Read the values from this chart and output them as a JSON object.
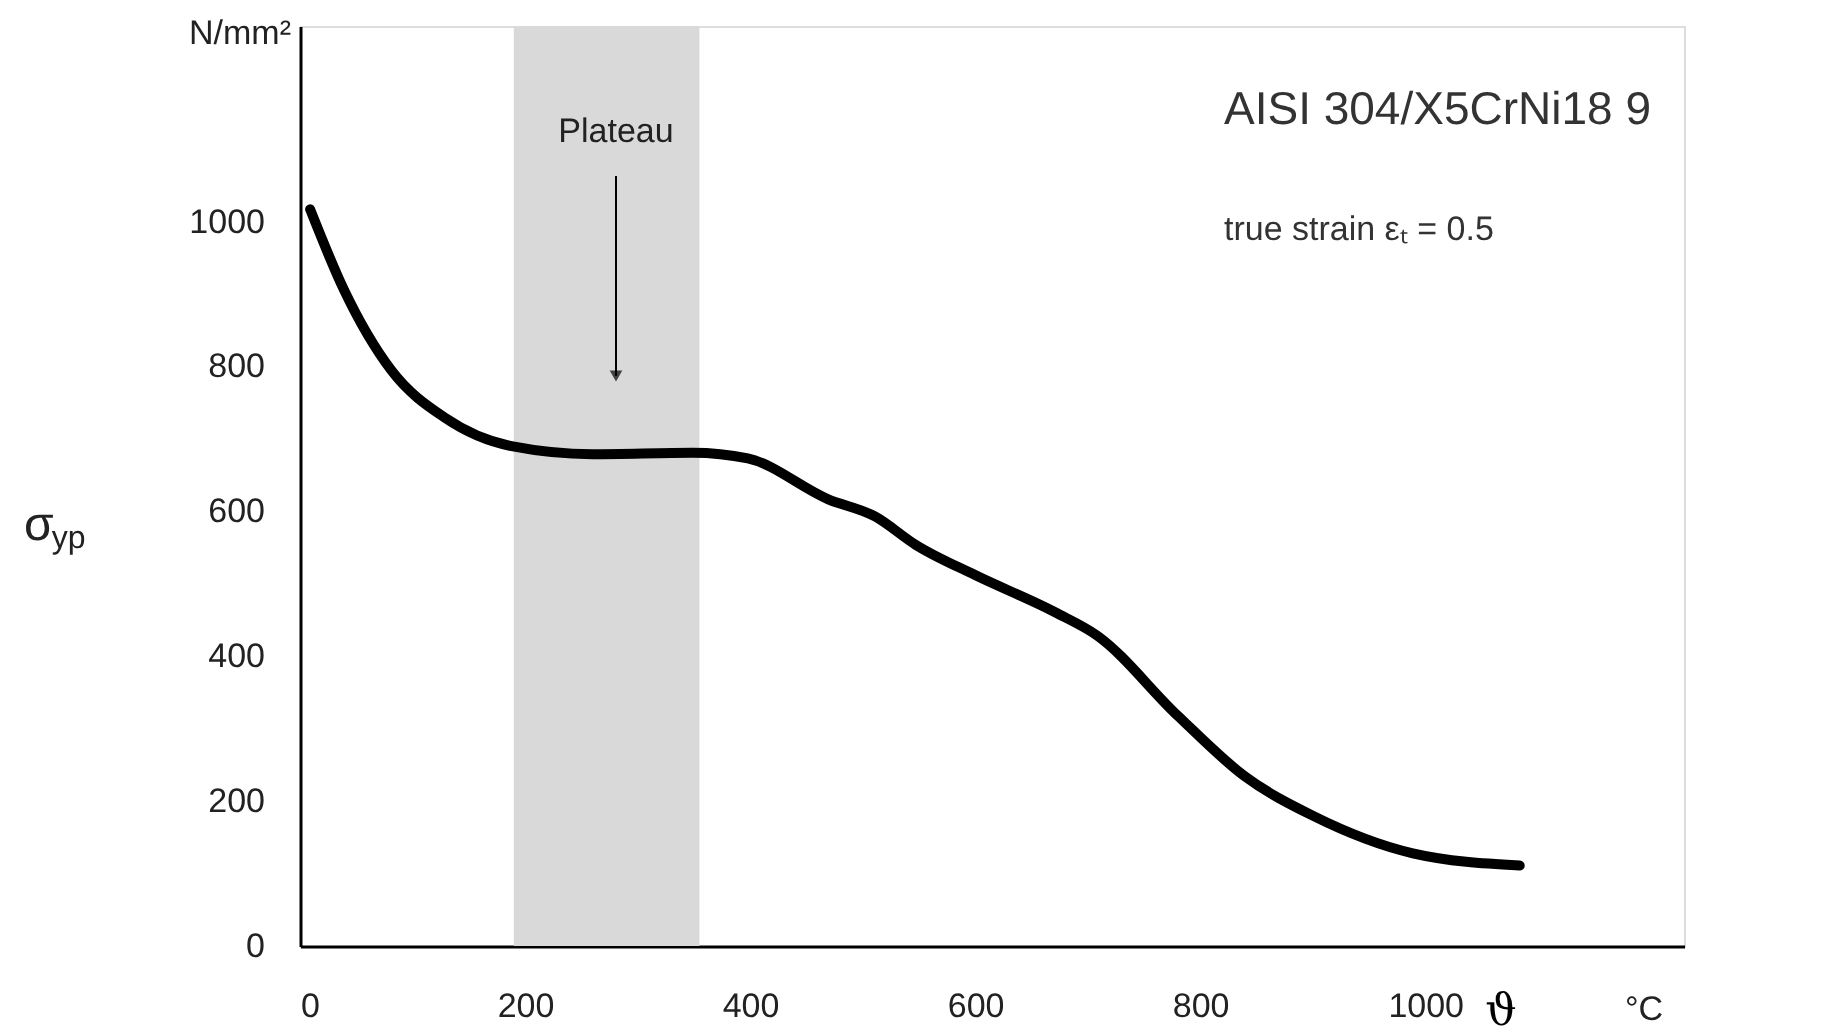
{
  "chart_data": {
    "type": "line",
    "title": "AISI 304/X5CrNi18 9",
    "subtitle": "true strain εₜ = 0.5",
    "xlabel": "ϑ",
    "ylabel": "σ$_{yp}$",
    "x": [
      9,
      39,
      81,
      129,
      188,
      260,
      349,
      398,
      469,
      511,
      547,
      600,
      672,
      708,
      780,
      839,
      900,
      989,
      1084
    ],
    "series": [
      {
        "color": "#000000",
        "values": [
          1017,
          906,
          795,
          729,
          690,
          679,
          681,
          673,
          617,
          593,
          554,
          512,
          460,
          429,
          318,
          235,
          180,
          128,
          111
        ]
      }
    ],
    "xlim": [
      0,
      1230
    ],
    "ylim": [
      0,
      1270
    ],
    "xticks": [
      0,
      200,
      400,
      600,
      800,
      1000
    ],
    "yticks": [
      0,
      200,
      400,
      600,
      800,
      1000
    ],
    "bands": [
      {
        "axis": "x",
        "from": 190,
        "to": 355,
        "color": "#d9d9d9"
      }
    ],
    "annotations": [
      "Plateau",
      "N/mm²",
      "°C"
    ],
    "grid": false,
    "marker": "none",
    "line_style": "solid"
  }
}
